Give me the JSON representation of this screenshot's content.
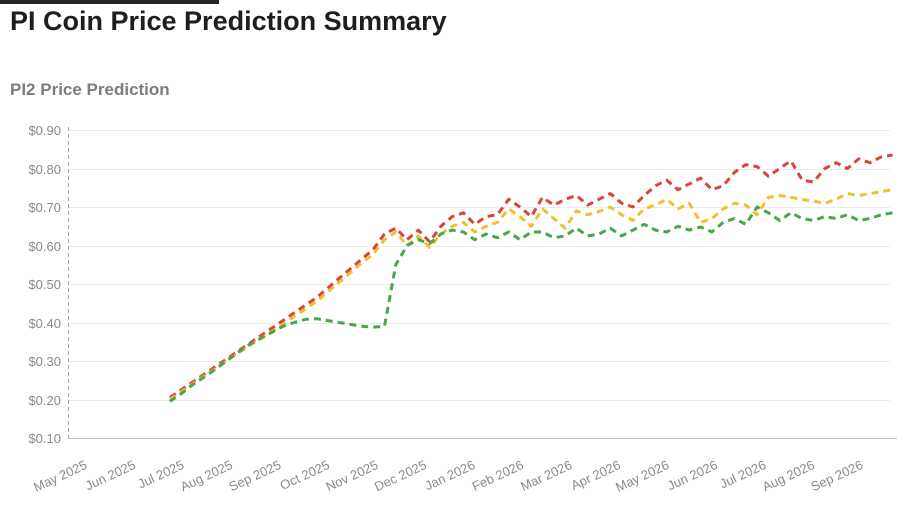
{
  "page": {
    "title": "PI Coin Price Prediction Summary",
    "chart_heading": "PI2 Price Prediction"
  },
  "chart_data": {
    "type": "line",
    "title": "PI2 Price Prediction",
    "line_style": "dashed",
    "grid": true,
    "legend": "none",
    "ylim": [
      0.1,
      0.9
    ],
    "y_ticks": [
      {
        "label": "$0.90",
        "value": 0.9
      },
      {
        "label": "$0.80",
        "value": 0.8
      },
      {
        "label": "$0.70",
        "value": 0.7
      },
      {
        "label": "$0.60",
        "value": 0.6
      },
      {
        "label": "$0.50",
        "value": 0.5
      },
      {
        "label": "$0.40",
        "value": 0.4
      },
      {
        "label": "$0.30",
        "value": 0.3
      },
      {
        "label": "$0.20",
        "value": 0.2
      },
      {
        "label": "$0.10",
        "value": 0.1
      }
    ],
    "x_tick_labels": [
      "May 2025",
      "Jun 2025",
      "Jul 2025",
      "Aug 2025",
      "Sep 2025",
      "Oct 2025",
      "Nov 2025",
      "Dec 2025",
      "Jan 2026",
      "Feb 2026",
      "Mar 2026",
      "Apr 2026",
      "May 2026",
      "Jun 2026",
      "Jul 2026",
      "Aug 2026",
      "Sep 2026"
    ],
    "x_start_month_offset": 2.102,
    "x_step_months": 0.2328,
    "series": [
      {
        "name": "red-dashed",
        "color": "#d9453c",
        "values": [
          0.205,
          0.225,
          0.245,
          0.265,
          0.285,
          0.305,
          0.325,
          0.345,
          0.365,
          0.385,
          0.405,
          0.425,
          0.445,
          0.465,
          0.49,
          0.515,
          0.54,
          0.565,
          0.59,
          0.63,
          0.645,
          0.615,
          0.64,
          0.61,
          0.65,
          0.675,
          0.685,
          0.655,
          0.675,
          0.68,
          0.72,
          0.7,
          0.675,
          0.725,
          0.705,
          0.72,
          0.73,
          0.705,
          0.72,
          0.735,
          0.71,
          0.7,
          0.73,
          0.755,
          0.77,
          0.745,
          0.76,
          0.775,
          0.745,
          0.755,
          0.79,
          0.81,
          0.805,
          0.78,
          0.8,
          0.82,
          0.77,
          0.765,
          0.8,
          0.815,
          0.8,
          0.825,
          0.815,
          0.83,
          0.835
        ]
      },
      {
        "name": "yellow-dashed",
        "color": "#efc130",
        "values": [
          0.2,
          0.22,
          0.24,
          0.26,
          0.28,
          0.3,
          0.32,
          0.34,
          0.358,
          0.376,
          0.395,
          0.415,
          0.435,
          0.455,
          0.48,
          0.505,
          0.53,
          0.555,
          0.578,
          0.615,
          0.635,
          0.6,
          0.625,
          0.595,
          0.63,
          0.65,
          0.66,
          0.635,
          0.65,
          0.66,
          0.695,
          0.675,
          0.65,
          0.695,
          0.67,
          0.645,
          0.69,
          0.68,
          0.688,
          0.7,
          0.68,
          0.665,
          0.695,
          0.705,
          0.72,
          0.695,
          0.71,
          0.66,
          0.67,
          0.695,
          0.71,
          0.705,
          0.68,
          0.725,
          0.73,
          0.725,
          0.72,
          0.715,
          0.71,
          0.72,
          0.735,
          0.73,
          0.735,
          0.74,
          0.745
        ]
      },
      {
        "name": "green-dashed",
        "color": "#4aa64a",
        "values": [
          0.195,
          0.215,
          0.238,
          0.258,
          0.278,
          0.3,
          0.322,
          0.342,
          0.358,
          0.374,
          0.39,
          0.4,
          0.408,
          0.41,
          0.405,
          0.4,
          0.395,
          0.39,
          0.388,
          0.39,
          0.55,
          0.6,
          0.615,
          0.605,
          0.63,
          0.64,
          0.635,
          0.615,
          0.63,
          0.62,
          0.635,
          0.615,
          0.635,
          0.635,
          0.62,
          0.625,
          0.645,
          0.625,
          0.63,
          0.645,
          0.625,
          0.64,
          0.655,
          0.64,
          0.635,
          0.65,
          0.64,
          0.648,
          0.635,
          0.66,
          0.67,
          0.655,
          0.7,
          0.685,
          0.665,
          0.685,
          0.67,
          0.665,
          0.675,
          0.67,
          0.68,
          0.665,
          0.67,
          0.68,
          0.685
        ]
      }
    ]
  }
}
